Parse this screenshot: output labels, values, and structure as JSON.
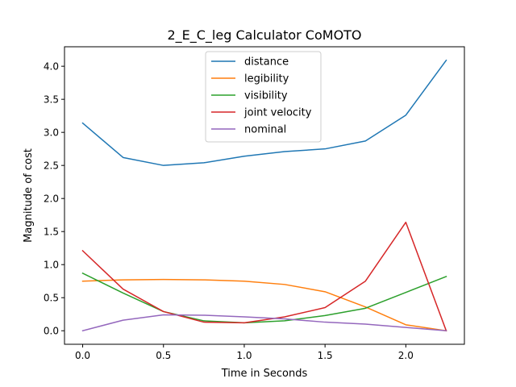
{
  "chart_data": {
    "type": "line",
    "title": "2_E_C_leg Calculator CoMOTO",
    "xlabel": "Time in Seconds",
    "ylabel": "Magnitude of cost",
    "xlim": [
      -0.1125,
      2.3625
    ],
    "ylim": [
      -0.2045,
      4.2945
    ],
    "xticks": [
      0.0,
      0.5,
      1.0,
      1.5,
      2.0
    ],
    "xtick_labels": [
      "0.0",
      "0.5",
      "1.0",
      "1.5",
      "2.0"
    ],
    "yticks": [
      0.0,
      0.5,
      1.0,
      1.5,
      2.0,
      2.5,
      3.0,
      3.5,
      4.0
    ],
    "ytick_labels": [
      "0.0",
      "0.5",
      "1.0",
      "1.5",
      "2.0",
      "2.5",
      "3.0",
      "3.5",
      "4.0"
    ],
    "grid": false,
    "legend_position": "top-center",
    "x": [
      0.0,
      0.25,
      0.5,
      0.75,
      1.0,
      1.25,
      1.5,
      1.75,
      2.0,
      2.25
    ],
    "series": [
      {
        "name": "distance",
        "color": "#1f77b4",
        "values": [
          3.14,
          2.62,
          2.5,
          2.54,
          2.64,
          2.71,
          2.75,
          2.87,
          3.26,
          4.09
        ]
      },
      {
        "name": "legibility",
        "color": "#ff7f0e",
        "values": [
          0.75,
          0.77,
          0.775,
          0.77,
          0.75,
          0.7,
          0.59,
          0.36,
          0.09,
          0.0
        ]
      },
      {
        "name": "visibility",
        "color": "#2ca02c",
        "values": [
          0.87,
          0.57,
          0.29,
          0.15,
          0.12,
          0.15,
          0.23,
          0.34,
          0.58,
          0.82
        ]
      },
      {
        "name": "joint velocity",
        "color": "#d62728",
        "values": [
          1.21,
          0.63,
          0.29,
          0.13,
          0.12,
          0.21,
          0.35,
          0.75,
          1.64,
          0.0
        ]
      },
      {
        "name": "nominal",
        "color": "#9467bd",
        "values": [
          0.0,
          0.16,
          0.24,
          0.235,
          0.21,
          0.18,
          0.13,
          0.1,
          0.05,
          0.0
        ]
      }
    ]
  }
}
